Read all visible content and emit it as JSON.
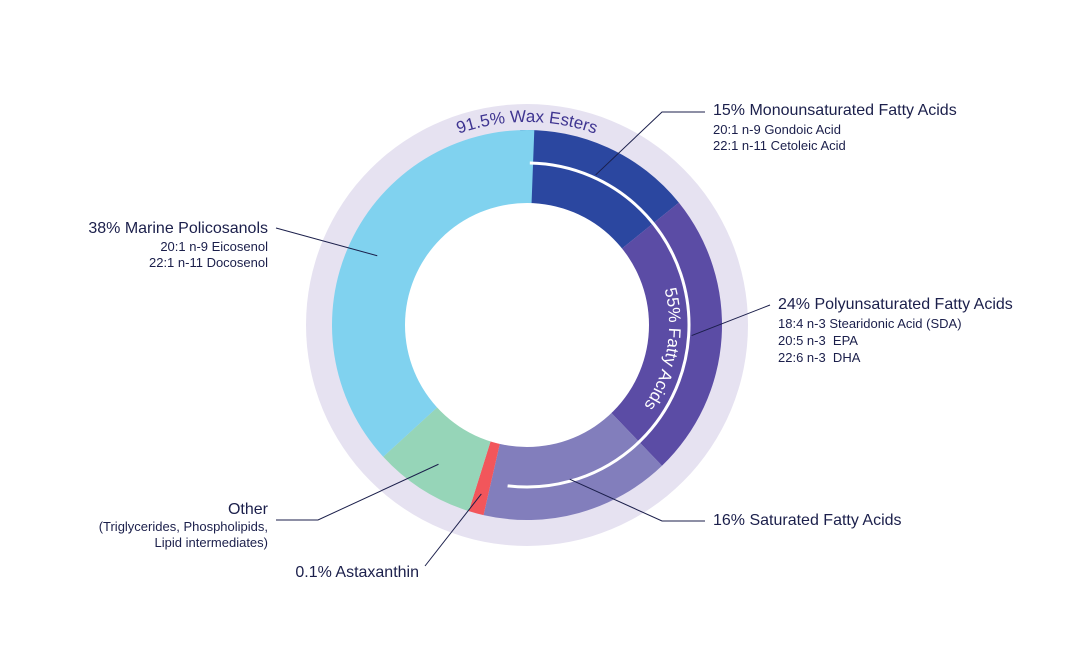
{
  "chart_data": {
    "type": "pie",
    "rings": {
      "outer": {
        "label": "91.5% Wax Esters",
        "value": 91.5,
        "color": "#e6e2f1",
        "label_color": "#3f3591"
      },
      "arc": {
        "label": "55% Fatty Acids",
        "value": 55
      }
    },
    "slices": [
      {
        "key": "mufa",
        "value": 15,
        "color": "#2b47a0",
        "label": "15% Monounsaturated Fatty Acids",
        "details": [
          "20:1 n-9 Gondoic Acid",
          "22:1 n-11 Cetoleic Acid"
        ]
      },
      {
        "key": "pufa",
        "value": 24,
        "color": "#5b4ca5",
        "label": "24% Polyunsaturated Fatty Acids",
        "details": [
          "18:4 n-3 Stearidonic Acid (SDA)",
          "20:5 n-3  EPA",
          "22:6 n-3  DHA"
        ]
      },
      {
        "key": "sfa",
        "value": 16,
        "color": "#827ebc",
        "label": "16% Saturated Fatty Acids",
        "details": []
      },
      {
        "key": "astax",
        "value": 0.1,
        "color": "#f2565b",
        "label": "0.1% Astaxanthin",
        "details": []
      },
      {
        "key": "other",
        "value": 8.5,
        "color": "#96d5b8",
        "label": "Other",
        "details": [
          "(Triglycerides, Phospholipids,",
          "Lipid intermediates)"
        ]
      },
      {
        "key": "policosanols",
        "value": 38,
        "color": "#80d2ef",
        "label": "38% Marine Policosanols",
        "details": [
          "20:1 n-9 Eicosenol",
          "22:1 n-11 Docosenol"
        ]
      }
    ]
  }
}
